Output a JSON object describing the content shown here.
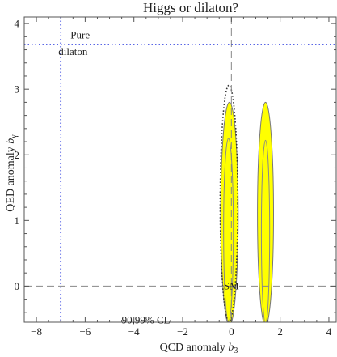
{
  "chart_data": {
    "type": "scatter",
    "title": "Higgs or dilaton?",
    "xlabel_main": "QCD anomaly ",
    "xlabel_var": "b",
    "xlabel_sub": "3",
    "ylabel_main": "QED anomaly ",
    "ylabel_var": "b",
    "ylabel_sub": "γ",
    "xlim": [
      -8.5,
      4.3
    ],
    "ylim": [
      -0.55,
      4.1
    ],
    "x_ticks": [
      {
        "value": -8,
        "label": "−8"
      },
      {
        "value": -6,
        "label": "−6"
      },
      {
        "value": -4,
        "label": "−4"
      },
      {
        "value": -2,
        "label": "−2"
      },
      {
        "value": 0,
        "label": "0"
      },
      {
        "value": 2,
        "label": "2"
      },
      {
        "value": 4,
        "label": "4"
      }
    ],
    "y_ticks": [
      {
        "value": 0,
        "label": "0"
      },
      {
        "value": 1,
        "label": "1"
      },
      {
        "value": 2,
        "label": "2"
      },
      {
        "value": 3,
        "label": "3"
      },
      {
        "value": 4,
        "label": "4"
      }
    ],
    "reference_lines": [
      {
        "orientation": "vertical",
        "x": 0,
        "style": "dashed",
        "color": "#888888"
      },
      {
        "orientation": "horizontal",
        "y": 0,
        "style": "dashed",
        "color": "#888888"
      },
      {
        "orientation": "vertical",
        "x": -7,
        "style": "dotted",
        "color": "#2233dd"
      },
      {
        "orientation": "horizontal",
        "y": 3.68,
        "style": "dotted",
        "color": "#2233dd"
      }
    ],
    "regions": [
      {
        "kind": "ellipse",
        "confidence": "99%",
        "cx": -0.08,
        "cy": 1.1,
        "rx": 0.36,
        "ry": 1.7,
        "fill": "#ffff00",
        "stroke": "#777777"
      },
      {
        "kind": "ellipse",
        "confidence": "90%",
        "cx": -0.12,
        "cy": 0.85,
        "rx": 0.2,
        "ry": 1.4,
        "fill": "none",
        "stroke": "#888888"
      },
      {
        "kind": "ellipse",
        "confidence": "99%",
        "cx": 1.4,
        "cy": 1.1,
        "rx": 0.33,
        "ry": 1.7,
        "fill": "#ffff00",
        "stroke": "#777777"
      },
      {
        "kind": "ellipse",
        "confidence": "90%",
        "cx": 1.4,
        "cy": 0.82,
        "rx": 0.17,
        "ry": 1.4,
        "fill": "none",
        "stroke": "#888888"
      },
      {
        "kind": "ellipse",
        "confidence": "dotted",
        "cx": -0.1,
        "cy": 1.26,
        "rx": 0.36,
        "ry": 1.8,
        "fill": "none",
        "stroke": "#333333",
        "style": "dotted"
      }
    ],
    "annotations": [
      {
        "text": "Pure",
        "x": -6.6,
        "y": 3.82
      },
      {
        "text": "dilaton",
        "x": -7.1,
        "y": 3.57
      },
      {
        "text": "SM",
        "x": 0,
        "y": 0
      },
      {
        "text": "90,99% CL",
        "x": -4.5,
        "y": -0.52
      }
    ],
    "grid": false,
    "legend": "none",
    "colors": {
      "confidence_fill": "#ffff00",
      "blue_lines": "#2233dd",
      "ref_lines": "#888888"
    }
  }
}
